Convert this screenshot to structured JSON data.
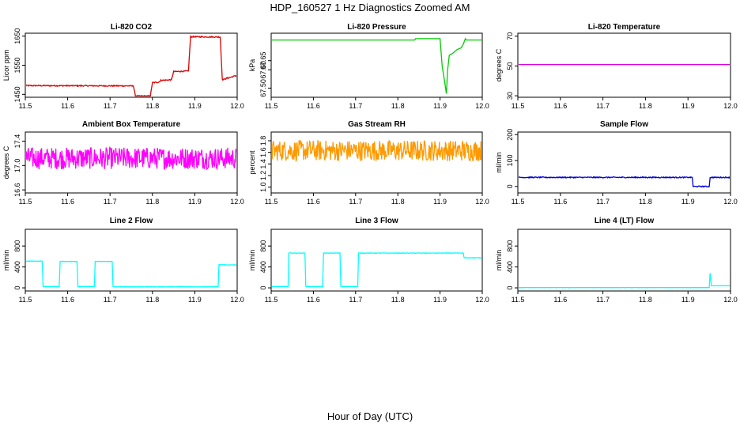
{
  "figure": {
    "title": "HDP_160527  1 Hz Diagnostics Zoomed AM",
    "xlabel": "Hour of Day (UTC)"
  },
  "chart_data": [
    {
      "type": "line",
      "title": "Li-820 CO2",
      "ylabel": "Licor ppm",
      "color": "#dd0000",
      "xlim": [
        11.5,
        12.0
      ],
      "ylim": [
        1440,
        1660
      ],
      "xticks": [
        "11.5",
        "11.6",
        "11.7",
        "11.8",
        "11.9",
        "12.0"
      ],
      "yticks": [
        "1450",
        "1550",
        "1650"
      ],
      "noise": 2,
      "series": [
        {
          "x": [
            11.5,
            11.755,
            11.76,
            11.795,
            11.8,
            11.815,
            11.82,
            11.845,
            11.85,
            11.885,
            11.89,
            11.96,
            11.965,
            11.975,
            12.0
          ],
          "y": [
            1480,
            1479,
            1444,
            1444,
            1490,
            1492,
            1498,
            1500,
            1528,
            1530,
            1648,
            1647,
            1500,
            1505,
            1515
          ]
        }
      ]
    },
    {
      "type": "line",
      "title": "Li-820 Pressure",
      "ylabel": "kPa",
      "color": "#00cc00",
      "xlim": [
        11.5,
        12.0
      ],
      "ylim": [
        67.45,
        67.8
      ],
      "xticks": [
        "11.5",
        "11.6",
        "11.7",
        "11.8",
        "11.9",
        "12.0"
      ],
      "yticks": [
        "67.50",
        "67.60",
        "67.65"
      ],
      "noise": 0,
      "series": [
        {
          "x": [
            11.5,
            11.84,
            11.842,
            11.9,
            11.905,
            11.91,
            11.915,
            11.918,
            11.922,
            11.93,
            11.94,
            11.95,
            11.955,
            11.96,
            11.962,
            12.0
          ],
          "y": [
            67.763,
            67.763,
            67.77,
            67.77,
            67.62,
            67.55,
            67.47,
            67.6,
            67.68,
            67.69,
            67.71,
            67.72,
            67.74,
            67.77,
            67.763,
            67.763
          ]
        }
      ]
    },
    {
      "type": "line",
      "title": "Li-820 Temperature",
      "ylabel": "degrees C",
      "color": "#dd00dd",
      "xlim": [
        11.5,
        12.0
      ],
      "ylim": [
        29,
        72
      ],
      "xticks": [
        "11.5",
        "11.6",
        "11.7",
        "11.8",
        "11.9",
        "12.0"
      ],
      "yticks": [
        "30",
        "50",
        "70"
      ],
      "noise": 0,
      "series": [
        {
          "x": [
            11.5,
            12.0
          ],
          "y": [
            51,
            51
          ]
        }
      ]
    },
    {
      "type": "line",
      "title": "Ambient Box Temperature",
      "ylabel": "degrees C",
      "color": "#ff00ff",
      "xlim": [
        11.5,
        12.0
      ],
      "ylim": [
        16.55,
        17.55
      ],
      "xticks": [
        "11.5",
        "11.6",
        "11.7",
        "11.8",
        "11.9",
        "12.0"
      ],
      "yticks": [
        "16.6",
        "17.0",
        "17.4"
      ],
      "noise": 0.18,
      "series": [
        {
          "x": [
            11.5,
            12.0
          ],
          "y": [
            17.12,
            17.12
          ]
        }
      ]
    },
    {
      "type": "line",
      "title": "Gas Stream RH",
      "ylabel": "percent",
      "color": "#ff9900",
      "xlim": [
        11.5,
        12.0
      ],
      "ylim": [
        0.9,
        1.95
      ],
      "xticks": [
        "11.5",
        "11.6",
        "11.7",
        "11.8",
        "11.9",
        "12.0"
      ],
      "yticks": [
        "1.0",
        "1.2",
        "1.4",
        "1.6",
        "1.8"
      ],
      "noise": 0.18,
      "series": [
        {
          "x": [
            11.5,
            12.0
          ],
          "y": [
            1.63,
            1.63
          ]
        }
      ]
    },
    {
      "type": "line",
      "title": "Sample Flow",
      "ylabel": "ml/min",
      "color": "#0000dd",
      "xlim": [
        11.5,
        12.0
      ],
      "ylim": [
        -25,
        210
      ],
      "xticks": [
        "11.5",
        "11.6",
        "11.7",
        "11.8",
        "11.9",
        "12.0"
      ],
      "yticks": [
        "0",
        "100",
        "200"
      ],
      "noise": 2,
      "series": [
        {
          "x": [
            11.5,
            11.91,
            11.912,
            11.95,
            11.952,
            12.0
          ],
          "y": [
            35,
            35,
            0,
            0,
            35,
            35
          ]
        }
      ]
    },
    {
      "type": "line",
      "title": "Line 2 Flow",
      "ylabel": "ml/min",
      "color": "#00ffff",
      "xlim": [
        11.5,
        12.0
      ],
      "ylim": [
        -60,
        1120
      ],
      "xticks": [
        "11.5",
        "11.6",
        "11.7",
        "11.8",
        "11.9",
        "12.0"
      ],
      "yticks": [
        "0",
        "400",
        "800"
      ],
      "noise": 4,
      "series": [
        {
          "x": [
            11.5,
            11.54,
            11.542,
            11.58,
            11.582,
            11.622,
            11.624,
            11.663,
            11.665,
            11.705,
            11.707,
            11.955,
            11.957,
            12.0
          ],
          "y": [
            510,
            510,
            25,
            25,
            505,
            505,
            25,
            25,
            505,
            505,
            20,
            20,
            440,
            440
          ]
        }
      ]
    },
    {
      "type": "line",
      "title": "Line 3 Flow",
      "ylabel": "ml/min",
      "color": "#00ffff",
      "xlim": [
        11.5,
        12.0
      ],
      "ylim": [
        -60,
        1120
      ],
      "xticks": [
        "11.5",
        "11.6",
        "11.7",
        "11.8",
        "11.9",
        "12.0"
      ],
      "yticks": [
        "0",
        "400",
        "800"
      ],
      "noise": 4,
      "series": [
        {
          "x": [
            11.5,
            11.54,
            11.542,
            11.58,
            11.582,
            11.622,
            11.624,
            11.663,
            11.665,
            11.705,
            11.707,
            11.955,
            11.957,
            12.0
          ],
          "y": [
            25,
            25,
            665,
            665,
            25,
            25,
            665,
            665,
            25,
            25,
            665,
            665,
            575,
            575
          ]
        }
      ]
    },
    {
      "type": "line",
      "title": "Line 4 (LT) Flow",
      "ylabel": "ml/min",
      "color": "#00ffff",
      "xlim": [
        11.5,
        12.0
      ],
      "ylim": [
        -60,
        1120
      ],
      "xticks": [
        "11.5",
        "11.6",
        "11.7",
        "11.8",
        "11.9",
        "12.0"
      ],
      "yticks": [
        "0",
        "400",
        "800"
      ],
      "noise": 2,
      "series": [
        {
          "x": [
            11.5,
            11.95,
            11.952,
            11.955,
            11.958,
            12.0
          ],
          "y": [
            5,
            5,
            280,
            40,
            40,
            40
          ]
        }
      ]
    }
  ]
}
